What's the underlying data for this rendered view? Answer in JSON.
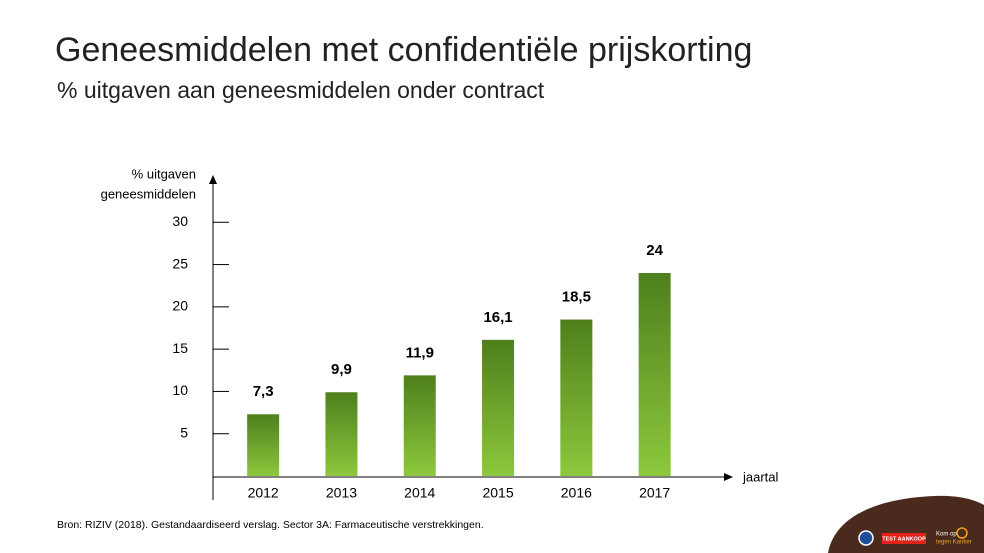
{
  "chart_data": {
    "type": "bar",
    "title": "Geneesmiddelen met confidentiële prijskorting",
    "subtitle": "% uitgaven aan geneesmiddelen onder contract",
    "y_label": [
      "% uitgaven",
      "geneesmiddelen"
    ],
    "x_label": "jaartal",
    "categories": [
      "2012",
      "2013",
      "2014",
      "2015",
      "2016",
      "2017"
    ],
    "values": [
      7.3,
      9.9,
      11.9,
      16.1,
      18.5,
      24
    ],
    "value_labels": [
      "7,3",
      "9,9",
      "11,9",
      "16,1",
      "18,5",
      "24"
    ],
    "color": "#4e7f1c",
    "color_bottom": "#8dc83c",
    "ylim": [
      0,
      35
    ],
    "yticks": [
      5,
      10,
      15,
      20,
      25,
      30
    ],
    "grid": false,
    "source": "Bron: RIZIV (2018). Gestandaardiseerd verslag. Sector 3A: Farmaceutische verstrekkingen."
  },
  "logos": [
    "TEST AANKOOP",
    "Kom op",
    "tegen Kanker"
  ]
}
